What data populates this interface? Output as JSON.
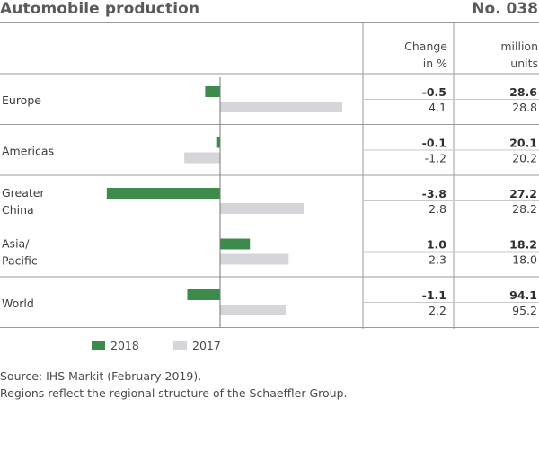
{
  "header": {
    "title": "Automobile production",
    "number": "No. 038",
    "col_change_line1": "Change",
    "col_change_line2": "in %",
    "col_units_line1": "million",
    "col_units_line2": "units"
  },
  "legend": {
    "s2018": "2018",
    "s2017": "2017"
  },
  "footnote": {
    "line1": "Source: IHS Markit (February 2019).",
    "line2": "Regions reflect the regional structure of the Schaeffler Group."
  },
  "colors": {
    "s2018": "#3d8b4a",
    "s2017": "#d4d6da",
    "axis": "#777777",
    "divider": "#9a9a9a"
  },
  "chart_data": {
    "type": "bar",
    "orientation": "horizontal",
    "categories": [
      [
        "Europe"
      ],
      [
        "Americas"
      ],
      [
        "Greater",
        "China"
      ],
      [
        "Asia/",
        "Pacific"
      ],
      [
        "World"
      ]
    ],
    "series": [
      {
        "name": "2018",
        "values": [
          -0.5,
          -0.1,
          -3.8,
          1.0,
          -1.1
        ],
        "labels": [
          "-0.5",
          "-0.1",
          "-3.8",
          "1.0",
          "-1.1"
        ],
        "units": [
          "28.6",
          "20.1",
          "27.2",
          "18.2",
          "94.1"
        ]
      },
      {
        "name": "2017",
        "values": [
          4.1,
          -1.2,
          2.8,
          2.3,
          2.2
        ],
        "labels": [
          "4.1",
          "-1.2",
          "2.8",
          "2.3",
          "2.2"
        ],
        "units": [
          "28.8",
          "20.2",
          "28.2",
          "18.0",
          "95.2"
        ]
      }
    ],
    "columns": [
      "Change in %",
      "million units"
    ],
    "xlim": [
      -4.0,
      4.2
    ],
    "grid": false,
    "legend": "bottom-left"
  }
}
